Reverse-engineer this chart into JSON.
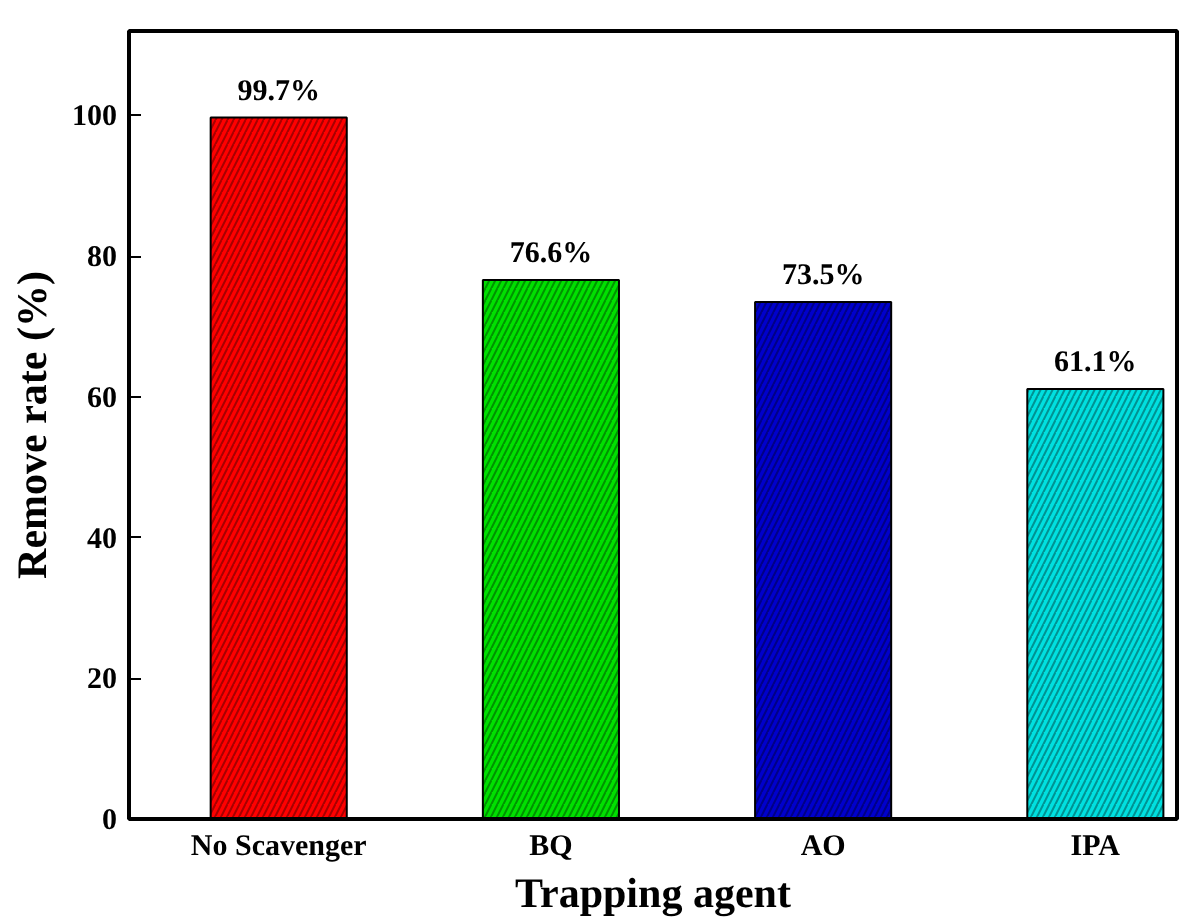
{
  "chart_data": {
    "type": "bar",
    "xlabel": "Trapping agent",
    "ylabel": "Remove rate (%)",
    "categories": [
      "No Scavenger",
      "BQ",
      "AO",
      "IPA"
    ],
    "values": [
      99.7,
      76.6,
      73.5,
      61.1
    ],
    "colors": [
      "#ff0000",
      "#00e000",
      "#0000cc",
      "#00e0e0"
    ],
    "value_labels": [
      "99.7%",
      "76.6%",
      "73.5%",
      "61.1%"
    ],
    "ylim": [
      0,
      112
    ],
    "yticks": [
      0,
      20,
      40,
      60,
      80,
      100
    ],
    "grid": false
  }
}
